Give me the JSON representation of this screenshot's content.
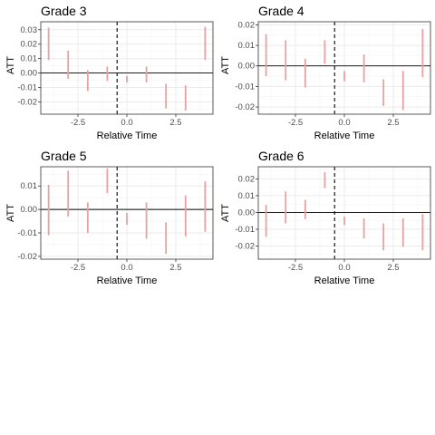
{
  "figure": {
    "xlabel": "Relative Time",
    "ylabel": "ATT"
  },
  "chart_data": [
    {
      "type": "scatter",
      "title": "Grade 3",
      "xlabel": "Relative Time",
      "ylabel": "ATT",
      "xlim": [
        -4.4,
        4.4
      ],
      "ylim": [
        -0.0285,
        0.0355
      ],
      "xticks": [
        -2.5,
        0,
        2.5
      ],
      "xtick_labels": [
        "-2.5",
        "0.0",
        "2.5"
      ],
      "yticks": [
        -0.02,
        -0.01,
        0,
        0.01,
        0.02,
        0.03
      ],
      "ytick_labels": [
        "-0.02",
        "-0.01",
        "0.00",
        "0.01",
        "0.02",
        "0.03"
      ],
      "hline": 0,
      "vline": -0.5,
      "x": [
        -4,
        -3,
        -2,
        -1,
        0,
        1,
        2,
        3,
        4
      ],
      "y": [
        0.021,
        0.005,
        -0.004,
        0.0,
        -0.004,
        -0.001,
        -0.015,
        -0.017,
        0.021
      ],
      "ci_low": [
        0.009,
        -0.004,
        -0.0125,
        -0.0055,
        -0.0065,
        -0.0065,
        -0.0245,
        -0.026,
        0.009
      ],
      "ci_high": [
        0.0315,
        0.0155,
        0.002,
        0.0045,
        -0.002,
        0.0045,
        -0.0075,
        -0.0085,
        0.032
      ],
      "color": "#e8a0a0"
    },
    {
      "type": "scatter",
      "title": "Grade 4",
      "xlabel": "Relative Time",
      "ylabel": "ATT",
      "xlim": [
        -4.4,
        4.4
      ],
      "ylim": [
        -0.0235,
        0.0215
      ],
      "xticks": [
        -2.5,
        0,
        2.5
      ],
      "xtick_labels": [
        "-2.5",
        "0.0",
        "2.5"
      ],
      "yticks": [
        -0.02,
        -0.01,
        0,
        0.01,
        0.02
      ],
      "ytick_labels": [
        "-0.02",
        "-0.01",
        "0.00",
        "0.01",
        "0.02"
      ],
      "hline": 0,
      "vline": -0.5,
      "x": [
        -4,
        -3,
        -2,
        -1,
        0,
        1,
        2,
        3,
        4
      ],
      "y": [
        0.005,
        0.003,
        -0.003,
        0.007,
        -0.005,
        -0.002,
        -0.013,
        -0.012,
        0.006
      ],
      "ci_low": [
        -0.005,
        -0.007,
        -0.0105,
        0.001,
        -0.0075,
        -0.008,
        -0.0195,
        -0.0215,
        -0.0055
      ],
      "ci_high": [
        0.0155,
        0.0125,
        0.0035,
        0.0125,
        -0.0025,
        0.0055,
        -0.0065,
        -0.0025,
        0.018
      ],
      "color": "#e8a0a0"
    },
    {
      "type": "scatter",
      "title": "Grade 5",
      "xlabel": "Relative Time",
      "ylabel": "ATT",
      "xlim": [
        -4.4,
        4.4
      ],
      "ylim": [
        -0.0212,
        0.0182
      ],
      "xticks": [
        -2.5,
        0,
        2.5
      ],
      "xtick_labels": [
        "-2.5",
        "0.0",
        "2.5"
      ],
      "yticks": [
        -0.02,
        -0.01,
        0,
        0.01
      ],
      "ytick_labels": [
        "-0.02",
        "-0.01",
        "0.00",
        "0.01"
      ],
      "hline": 0,
      "vline": -0.5,
      "x": [
        -4,
        -3,
        -2,
        -1,
        0,
        1,
        2,
        3,
        4
      ],
      "y": [
        0.0,
        0.006,
        -0.003,
        0.012,
        -0.004,
        -0.004,
        -0.011,
        -0.002,
        0.001
      ],
      "ci_low": [
        -0.011,
        -0.003,
        -0.01,
        0.007,
        -0.0065,
        -0.0125,
        -0.019,
        -0.0115,
        -0.0095
      ],
      "ci_high": [
        0.0105,
        0.0165,
        0.003,
        0.0175,
        -0.0015,
        0.003,
        -0.0055,
        0.006,
        0.012
      ],
      "color": "#e8a0a0"
    },
    {
      "type": "scatter",
      "title": "Grade 6",
      "xlabel": "Relative Time",
      "ylabel": "ATT",
      "xlim": [
        -4.4,
        4.4
      ],
      "ylim": [
        -0.0278,
        0.0272
      ],
      "xticks": [
        -2.5,
        0,
        2.5
      ],
      "xtick_labels": [
        "-2.5",
        "0.0",
        "2.5"
      ],
      "yticks": [
        -0.02,
        -0.01,
        0,
        0.01,
        0.02
      ],
      "ytick_labels": [
        "-0.02",
        "-0.01",
        "0.00",
        "0.01",
        "0.02"
      ],
      "hline": 0,
      "vline": -0.5,
      "x": [
        -4,
        -3,
        -2,
        -1,
        0,
        1,
        2,
        3,
        4
      ],
      "y": [
        -0.005,
        0.003,
        0.001,
        0.019,
        -0.005,
        -0.008,
        -0.014,
        -0.012,
        -0.012
      ],
      "ci_low": [
        -0.0145,
        -0.0065,
        -0.004,
        0.0145,
        -0.0075,
        -0.0155,
        -0.0225,
        -0.0205,
        -0.0225
      ],
      "ci_high": [
        0.0045,
        0.0125,
        0.0075,
        0.024,
        -0.0025,
        -0.0035,
        -0.0065,
        -0.0035,
        -0.001
      ],
      "color": "#e8a0a0"
    }
  ]
}
